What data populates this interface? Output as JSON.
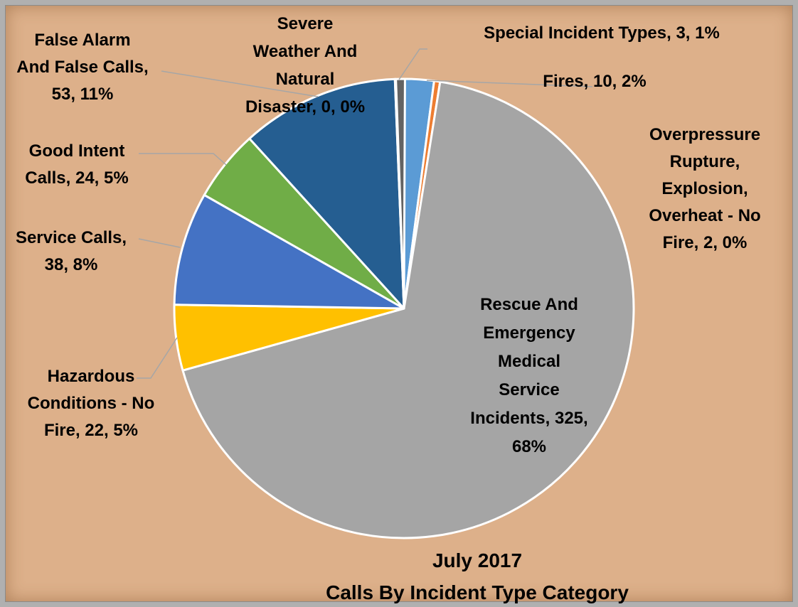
{
  "chart_data": {
    "type": "pie",
    "title": [
      "July 2017",
      "Calls By Incident Type Category"
    ],
    "categories": [
      "Fires",
      "Overpressure Rupture, Explosion, Overheat - No Fire",
      "Rescue And Emergency Medical Service Incidents",
      "Hazardous Conditions - No Fire",
      "Service Calls",
      "Good Intent Calls",
      "False Alarm And False Calls",
      "Severe Weather And Natural Disaster",
      "Special Incident Types"
    ],
    "values": [
      10,
      2,
      325,
      22,
      38,
      24,
      53,
      0,
      3
    ],
    "percent_labels": [
      "2%",
      "0%",
      "68%",
      "5%",
      "8%",
      "5%",
      "11%",
      "0%",
      "1%"
    ],
    "colors": [
      "#5b9bd5",
      "#ed7d31",
      "#a5a5a5",
      "#ffc000",
      "#4472c4",
      "#70ad47",
      "#255e91",
      "#9e480e",
      "#636363"
    ],
    "data_labels": [
      [
        "Fires, 10, 2%"
      ],
      [
        "Overpressure",
        "Rupture,",
        "Explosion,",
        "Overheat - No",
        "Fire, 2, 0%"
      ],
      [
        "Rescue And",
        "Emergency",
        "Medical",
        "Service",
        "Incidents, 325,",
        "68%"
      ],
      [
        "Hazardous",
        "Conditions - No",
        "Fire, 22, 5%"
      ],
      [
        "Service Calls,",
        "38, 8%"
      ],
      [
        "Good Intent",
        "Calls, 24, 5%"
      ],
      [
        "False Alarm",
        "And False Calls,",
        "53, 11%"
      ],
      [
        "Severe",
        "Weather And",
        "Natural",
        "Disaster, 0, 0%"
      ],
      [
        "Special Incident Types, 3, 1%"
      ]
    ],
    "start_angle_deg": 0,
    "direction": "clockwise",
    "legend": "none"
  }
}
